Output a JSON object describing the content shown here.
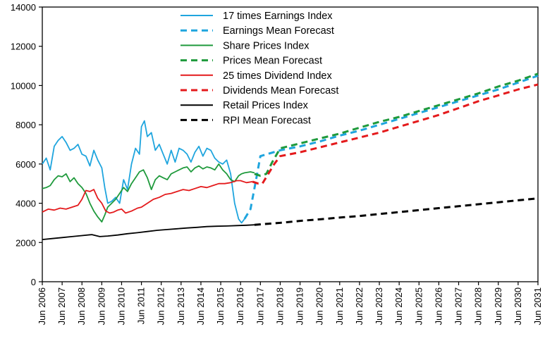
{
  "chart_data": {
    "type": "line",
    "title": "",
    "xlabel": "",
    "ylabel": "",
    "ylim": [
      0,
      14000
    ],
    "yticks": [
      0,
      2000,
      4000,
      6000,
      8000,
      10000,
      12000,
      14000
    ],
    "xlim": [
      2006,
      2031
    ],
    "xticks": [
      2006,
      2007,
      2008,
      2009,
      2010,
      2011,
      2012,
      2013,
      2014,
      2015,
      2016,
      2017,
      2018,
      2019,
      2020,
      2021,
      2022,
      2023,
      2024,
      2025,
      2026,
      2027,
      2028,
      2029,
      2030,
      2031
    ],
    "xtick_labels": [
      "Jun 2006",
      "Jun 2007",
      "Jun 2008",
      "Jun 2009",
      "Jun 2010",
      "Jun 2011",
      "Jun 2012",
      "Jun 2013",
      "Jun 2014",
      "Jun 2015",
      "Jun 2016",
      "Jun 2017",
      "Jun 2018",
      "Jun 2019",
      "Jun 2020",
      "Jun 2021",
      "Jun 2022",
      "Jun 2023",
      "Jun 2024",
      "Jun 2025",
      "Jun 2026",
      "Jun 2027",
      "Jun 2028",
      "Jun 2029",
      "Jun 2030",
      "Jun 2031"
    ],
    "grid": false,
    "legend_position": "top-center",
    "series": [
      {
        "name": "17 times Earnings Index",
        "color": "#1fa5de",
        "style": "solid",
        "x": [
          2006.0,
          2006.2,
          2006.4,
          2006.6,
          2006.8,
          2007.0,
          2007.2,
          2007.4,
          2007.6,
          2007.8,
          2008.0,
          2008.2,
          2008.4,
          2008.6,
          2008.8,
          2009.0,
          2009.15,
          2009.3,
          2009.5,
          2009.7,
          2009.9,
          2010.1,
          2010.3,
          2010.5,
          2010.7,
          2010.9,
          2011.0,
          2011.15,
          2011.3,
          2011.5,
          2011.7,
          2011.9,
          2012.1,
          2012.3,
          2012.5,
          2012.7,
          2012.9,
          2013.1,
          2013.3,
          2013.5,
          2013.7,
          2013.9,
          2014.1,
          2014.3,
          2014.5,
          2014.7,
          2014.9,
          2015.1,
          2015.3,
          2015.5,
          2015.7,
          2015.9,
          2016.05,
          2016.2
        ],
        "values": [
          6000,
          6300,
          5700,
          6900,
          7200,
          7400,
          7100,
          6700,
          6800,
          7000,
          6500,
          6400,
          5900,
          6700,
          6200,
          5800,
          4800,
          4000,
          4100,
          4300,
          4000,
          5200,
          4700,
          6000,
          6800,
          6500,
          7900,
          8200,
          7400,
          7600,
          6700,
          7000,
          6500,
          6000,
          6700,
          6100,
          6800,
          6700,
          6500,
          6100,
          6600,
          6900,
          6400,
          6800,
          6700,
          6300,
          6100,
          6000,
          6200,
          5500,
          4000,
          3200,
          3000,
          3200
        ]
      },
      {
        "name": "Earnings Mean Forecast",
        "color": "#1fa5de",
        "style": "dashed",
        "x": [
          2016.2,
          2016.5,
          2016.8,
          2017.0,
          2017.5,
          2018.0,
          2019.0,
          2020.0,
          2021.0,
          2022.0,
          2023.0,
          2024.0,
          2025.0,
          2026.0,
          2027.0,
          2028.0,
          2029.0,
          2030.0,
          2031.0
        ],
        "values": [
          3200,
          3700,
          5300,
          6400,
          6550,
          6700,
          6900,
          7150,
          7450,
          7700,
          8000,
          8300,
          8600,
          8900,
          9200,
          9500,
          9800,
          10150,
          10500
        ]
      },
      {
        "name": "Share Prices Index",
        "color": "#1f9a3c",
        "style": "solid",
        "x": [
          2006.0,
          2006.2,
          2006.4,
          2006.6,
          2006.8,
          2007.0,
          2007.2,
          2007.4,
          2007.6,
          2007.8,
          2008.0,
          2008.2,
          2008.4,
          2008.6,
          2008.8,
          2009.0,
          2009.15,
          2009.3,
          2009.5,
          2009.7,
          2009.9,
          2010.1,
          2010.3,
          2010.5,
          2010.7,
          2010.9,
          2011.1,
          2011.3,
          2011.5,
          2011.7,
          2011.9,
          2012.1,
          2012.3,
          2012.5,
          2012.7,
          2012.9,
          2013.1,
          2013.3,
          2013.5,
          2013.7,
          2013.9,
          2014.1,
          2014.3,
          2014.5,
          2014.7,
          2014.9,
          2015.1,
          2015.3,
          2015.5,
          2015.7,
          2015.9,
          2016.05,
          2016.2,
          2016.5,
          2016.7
        ],
        "values": [
          4750,
          4800,
          4900,
          5200,
          5400,
          5350,
          5500,
          5100,
          5300,
          5000,
          4800,
          4500,
          4000,
          3600,
          3300,
          3050,
          3400,
          3800,
          4000,
          4200,
          4500,
          4800,
          4600,
          5000,
          5300,
          5600,
          5700,
          5300,
          4700,
          5200,
          5400,
          5300,
          5200,
          5500,
          5600,
          5700,
          5800,
          5850,
          5600,
          5800,
          5900,
          5750,
          5850,
          5800,
          5700,
          6000,
          5700,
          5500,
          5200,
          5100,
          5400,
          5500,
          5550,
          5600,
          5550
        ]
      },
      {
        "name": "Prices Mean Forecast",
        "color": "#1f9a3c",
        "style": "dashed",
        "x": [
          2016.7,
          2017.0,
          2017.3,
          2017.6,
          2018.0,
          2019.0,
          2020.0,
          2021.0,
          2022.0,
          2023.0,
          2024.0,
          2025.0,
          2026.0,
          2027.0,
          2028.0,
          2029.0,
          2030.0,
          2031.0
        ],
        "values": [
          5500,
          5400,
          5500,
          6100,
          6800,
          7050,
          7300,
          7550,
          7850,
          8150,
          8400,
          8700,
          9000,
          9300,
          9600,
          9950,
          10250,
          10600
        ]
      },
      {
        "name": "25 times Dividend Index",
        "color": "#e41a1c",
        "style": "solid",
        "x": [
          2006.0,
          2006.3,
          2006.6,
          2006.9,
          2007.2,
          2007.5,
          2007.8,
          2008.0,
          2008.2,
          2008.4,
          2008.6,
          2008.8,
          2009.0,
          2009.2,
          2009.4,
          2009.6,
          2009.8,
          2010.0,
          2010.2,
          2010.5,
          2010.8,
          2011.0,
          2011.3,
          2011.6,
          2011.9,
          2012.2,
          2012.5,
          2012.8,
          2013.1,
          2013.4,
          2013.7,
          2014.0,
          2014.3,
          2014.6,
          2014.9,
          2015.2,
          2015.5,
          2015.8,
          2016.0,
          2016.3,
          2016.6
        ],
        "values": [
          3550,
          3700,
          3650,
          3750,
          3700,
          3800,
          3900,
          4200,
          4650,
          4600,
          4700,
          4250,
          4000,
          3600,
          3500,
          3550,
          3650,
          3700,
          3500,
          3600,
          3750,
          3800,
          4000,
          4200,
          4300,
          4450,
          4500,
          4600,
          4700,
          4650,
          4750,
          4850,
          4800,
          4900,
          5000,
          5000,
          5050,
          5150,
          5150,
          5050,
          5100
        ]
      },
      {
        "name": "Dividends Mean Forecast",
        "color": "#e41a1c",
        "style": "dashed",
        "x": [
          2016.6,
          2016.9,
          2017.1,
          2017.4,
          2017.7,
          2018.0,
          2019.0,
          2020.0,
          2021.0,
          2022.0,
          2023.0,
          2024.0,
          2025.0,
          2026.0,
          2027.0,
          2028.0,
          2029.0,
          2030.0,
          2031.0
        ],
        "values": [
          5100,
          5000,
          5000,
          5500,
          6000,
          6400,
          6600,
          6850,
          7100,
          7350,
          7600,
          7900,
          8200,
          8500,
          8850,
          9200,
          9500,
          9800,
          10050
        ]
      },
      {
        "name": "Retail Prices Index",
        "color": "#000000",
        "style": "solid",
        "x": [
          2006.0,
          2006.5,
          2007.0,
          2007.5,
          2008.0,
          2008.5,
          2008.9,
          2009.3,
          2009.8,
          2010.3,
          2010.8,
          2011.3,
          2011.8,
          2012.3,
          2012.8,
          2013.3,
          2013.8,
          2014.3,
          2014.8,
          2015.3,
          2015.8,
          2016.3,
          2016.7
        ],
        "values": [
          2150,
          2200,
          2250,
          2300,
          2350,
          2400,
          2300,
          2330,
          2380,
          2450,
          2500,
          2560,
          2620,
          2660,
          2700,
          2740,
          2770,
          2810,
          2830,
          2840,
          2860,
          2880,
          2900
        ]
      },
      {
        "name": "RPI Mean Forecast",
        "color": "#000000",
        "style": "dashed",
        "x": [
          2016.7,
          2018.0,
          2019.0,
          2020.0,
          2021.0,
          2022.0,
          2023.0,
          2024.0,
          2025.0,
          2026.0,
          2027.0,
          2028.0,
          2029.0,
          2030.0,
          2031.0
        ],
        "values": [
          2900,
          3000,
          3100,
          3180,
          3270,
          3350,
          3450,
          3550,
          3650,
          3750,
          3850,
          3950,
          4050,
          4150,
          4250
        ]
      }
    ]
  }
}
